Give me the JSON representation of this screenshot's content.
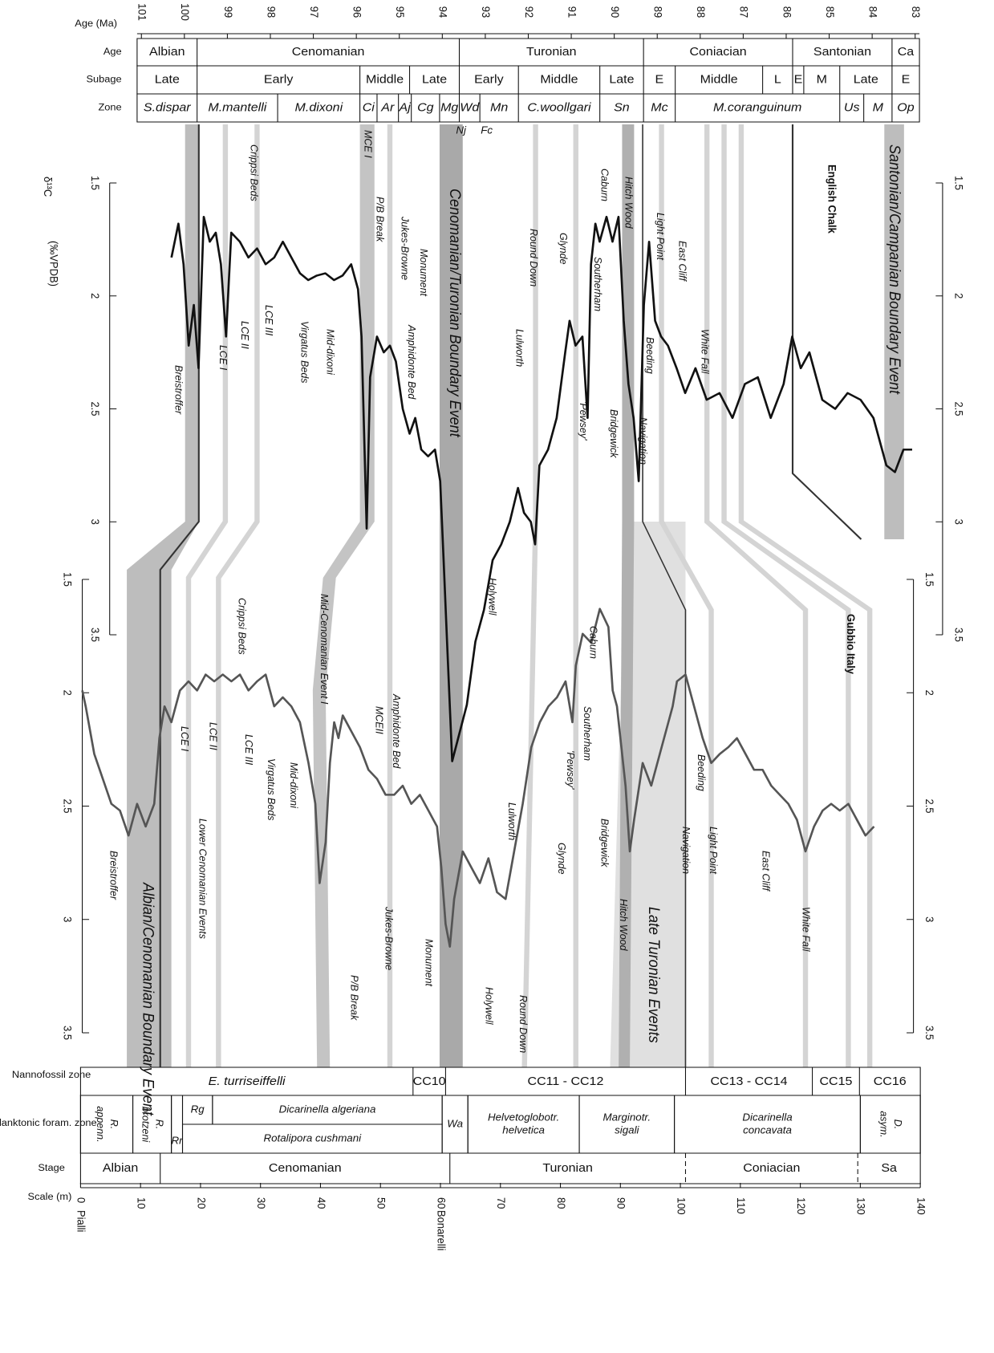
{
  "chart_data": [
    {
      "type": "line",
      "title": "English Chalk",
      "y_label": "δ¹³C",
      "y_unit": "(‰VPDB)",
      "x_label": "Age (Ma)",
      "color": "#111111",
      "x": [
        100.3,
        100.14,
        100.02,
        99.9,
        99.78,
        99.67,
        99.55,
        99.41,
        99.27,
        99.15,
        99.03,
        98.91,
        98.71,
        98.51,
        98.31,
        98.11,
        97.91,
        97.71,
        97.51,
        97.31,
        97.12,
        96.92,
        96.72,
        96.52,
        96.32,
        96.12,
        95.96,
        95.88,
        95.76,
        95.68,
        95.52,
        95.36,
        95.22,
        95.08,
        94.92,
        94.76,
        94.63,
        94.49,
        94.33,
        94.17,
        94.05,
        93.97,
        93.89,
        93.77,
        93.43,
        93.23,
        93.03,
        92.83,
        92.63,
        92.43,
        92.24,
        92.1,
        91.94,
        91.84,
        91.74,
        91.54,
        91.34,
        91.14,
        91.04,
        90.9,
        90.74,
        90.62,
        90.54,
        90.44,
        90.34,
        90.18,
        90.04,
        89.9,
        89.78,
        89.67,
        89.55,
        89.43,
        89.31,
        89.19,
        89.05,
        88.91,
        88.75,
        88.55,
        88.35,
        88.11,
        87.85,
        87.55,
        87.25,
        86.96,
        86.66,
        86.36,
        86.06,
        85.86,
        85.66,
        85.46,
        85.16,
        84.86,
        84.57,
        84.27,
        83.97,
        83.67,
        83.47,
        83.27,
        83.07
      ],
      "values": [
        1.83,
        1.68,
        1.86,
        2.22,
        2.04,
        2.32,
        1.65,
        1.76,
        1.72,
        1.86,
        2.18,
        1.72,
        1.76,
        1.83,
        1.79,
        1.86,
        1.83,
        1.76,
        1.83,
        1.9,
        1.93,
        1.91,
        1.9,
        1.93,
        1.91,
        1.86,
        1.97,
        2.18,
        3.03,
        2.36,
        2.18,
        2.25,
        2.22,
        2.29,
        2.5,
        2.61,
        2.54,
        2.68,
        2.71,
        2.68,
        2.82,
        3.17,
        3.53,
        4.06,
        3.81,
        3.53,
        3.39,
        3.17,
        3.1,
        3.0,
        2.85,
        2.96,
        3.0,
        3.1,
        2.75,
        2.68,
        2.54,
        2.25,
        2.11,
        2.22,
        2.18,
        2.54,
        1.86,
        1.68,
        1.76,
        1.65,
        1.76,
        1.65,
        2.11,
        2.39,
        2.54,
        2.82,
        2.04,
        1.76,
        2.11,
        2.18,
        2.22,
        2.32,
        2.43,
        2.32,
        2.46,
        2.43,
        2.54,
        2.39,
        2.36,
        2.54,
        2.39,
        2.18,
        2.32,
        2.25,
        2.46,
        2.5,
        2.43,
        2.46,
        2.54,
        2.75,
        2.78,
        2.68,
        2.68
      ],
      "xlim": [
        101.1,
        82.9
      ],
      "xticks": [
        101,
        100,
        99,
        98,
        97,
        96,
        95,
        94,
        93,
        92,
        91,
        90,
        89,
        88,
        87,
        86,
        85,
        84,
        83
      ],
      "ylim": [
        1.5,
        3.5
      ],
      "yticks": [
        1.5,
        2,
        2.5,
        3,
        3.5
      ]
    },
    {
      "type": "line",
      "title": "Gubbio Italy",
      "x_label": "Scale (m)",
      "color": "#555555",
      "x": [
        0.29,
        0.86,
        2.29,
        3.71,
        5.14,
        6.57,
        8.0,
        9.43,
        10.86,
        12.29,
        13.14,
        14.0,
        15.14,
        16.57,
        18.0,
        19.43,
        20.86,
        22.29,
        23.71,
        25.14,
        26.57,
        28.0,
        29.43,
        30.86,
        32.29,
        33.71,
        35.14,
        36.57,
        38.0,
        39.14,
        39.86,
        40.86,
        41.57,
        42.29,
        43.0,
        43.71,
        45.14,
        46.57,
        48.0,
        49.43,
        50.86,
        52.29,
        53.71,
        55.14,
        56.57,
        58.0,
        59.43,
        60.14,
        60.86,
        61.57,
        62.29,
        63.71,
        65.14,
        66.57,
        68.0,
        69.43,
        70.86,
        72.29,
        73.71,
        75.14,
        76.57,
        78.0,
        79.43,
        80.86,
        82.0,
        82.57,
        83.71,
        85.14,
        86.57,
        88.0,
        88.71,
        89.43,
        90.86,
        91.57,
        92.29,
        93.71,
        95.14,
        96.57,
        98.0,
        98.71,
        99.43,
        100.86,
        102.29,
        103.71,
        105.14,
        106.57,
        108.0,
        109.43,
        110.86,
        112.29,
        113.71,
        115.14,
        116.57,
        118.0,
        119.43,
        120.86,
        122.29,
        123.71,
        125.14,
        126.57,
        128.0,
        129.43,
        130.86,
        132.29
      ],
      "values": [
        1.99,
        2.06,
        2.27,
        2.38,
        2.49,
        2.52,
        2.63,
        2.49,
        2.59,
        2.49,
        2.2,
        2.06,
        2.13,
        1.99,
        1.95,
        1.99,
        1.92,
        1.95,
        1.92,
        1.95,
        1.92,
        1.99,
        1.95,
        1.92,
        2.06,
        2.02,
        2.06,
        2.13,
        2.31,
        2.49,
        2.84,
        2.66,
        2.31,
        2.13,
        2.2,
        2.1,
        2.17,
        2.24,
        2.34,
        2.38,
        2.45,
        2.45,
        2.41,
        2.49,
        2.45,
        2.52,
        2.59,
        2.77,
        3.02,
        3.12,
        2.91,
        2.7,
        2.77,
        2.84,
        2.73,
        2.88,
        2.91,
        2.7,
        2.49,
        2.24,
        2.13,
        2.06,
        2.02,
        1.95,
        2.13,
        1.88,
        1.74,
        1.78,
        1.63,
        1.71,
        1.99,
        2.06,
        2.41,
        2.7,
        2.56,
        2.31,
        2.41,
        2.27,
        2.13,
        2.06,
        1.95,
        1.92,
        2.06,
        2.2,
        2.31,
        2.27,
        2.24,
        2.2,
        2.27,
        2.34,
        2.34,
        2.41,
        2.45,
        2.49,
        2.56,
        2.7,
        2.59,
        2.52,
        2.49,
        2.52,
        2.49,
        2.56,
        2.63,
        2.59
      ],
      "xlim": [
        0,
        140
      ],
      "xticks": [
        0,
        10,
        20,
        30,
        40,
        50,
        60,
        70,
        80,
        90,
        100,
        110,
        120,
        130,
        140
      ],
      "ylim": [
        1.5,
        3.5
      ],
      "yticks": [
        1.5,
        2,
        2.5,
        3,
        3.5
      ]
    }
  ],
  "rows": {
    "age": {
      "label": "Age",
      "cells": [
        [
          "Albian"
        ],
        [
          "Cenomanian"
        ],
        [
          "Turonian"
        ],
        [
          "Coniacian"
        ],
        [
          "Santonian"
        ],
        [
          "Ca"
        ]
      ]
    },
    "subage": {
      "label": "Subage",
      "cells": [
        [
          "Late"
        ],
        [
          "Early"
        ],
        [
          "Middle"
        ],
        [
          "Late"
        ],
        [
          "Early"
        ],
        [
          "Middle"
        ],
        [
          "Late"
        ],
        [
          "E"
        ],
        [
          "Middle"
        ],
        [
          "L"
        ],
        [
          "E"
        ],
        [
          "M"
        ],
        [
          "Late"
        ],
        [
          "E"
        ]
      ]
    },
    "zone": {
      "label": "Zone",
      "cells": [
        [
          "S.dispar"
        ],
        [
          "M.mantelli"
        ],
        [
          "M.dixoni"
        ],
        [
          "Ci"
        ],
        [
          "Ar"
        ],
        [
          "Aj"
        ],
        [
          "Cg"
        ],
        [
          "Mg"
        ],
        [
          "Wd"
        ],
        [
          "Mn"
        ],
        [
          "C.woollgari"
        ],
        [
          "Sn"
        ],
        [
          "Mc"
        ],
        [
          "M.coranguinum"
        ],
        [
          "Us"
        ],
        [
          "M"
        ],
        [
          "Op"
        ]
      ]
    },
    "nanno": {
      "label": "Nannofossil zone",
      "cells": [
        [
          "E. turriseiffelli"
        ],
        [
          "CC10"
        ],
        [
          "CC11 - CC12"
        ],
        [
          "CC13 - CC14"
        ],
        [
          "CC15"
        ],
        [
          "CC16"
        ]
      ]
    },
    "foram": {
      "label": "Planktonic foram. zone",
      "cells": [
        [
          "R.",
          "appenn."
        ],
        [
          "R.",
          "brotzeni"
        ],
        [
          "Rr"
        ],
        [
          "Rg"
        ],
        [
          "Dicarinella algeriana"
        ],
        [
          "Rotalipora cushmani"
        ],
        [
          "Wa"
        ],
        [
          "Helvetoglobotr.",
          "helvetica"
        ],
        [
          "Marginotr.",
          "sigali"
        ],
        [
          "Dicarinella",
          "concavata"
        ],
        [
          "D.",
          "asym."
        ]
      ]
    },
    "stage": {
      "label": "Stage",
      "cells": [
        [
          "Albian"
        ],
        [
          "Cenomanian"
        ],
        [
          "Turonian"
        ],
        [
          "Coniacian"
        ],
        [
          "Sa"
        ]
      ]
    }
  },
  "notes": {
    "nj": "Nj",
    "fc": "Fc",
    "pialli": "Pialli",
    "bonarelli": "Bonarelli"
  },
  "events": {
    "chalk": [
      "Breistroffer",
      "LCE I",
      "LCE II",
      "LCE III",
      "Crippsi Beds",
      "Virgatus Beds",
      "Mid-dixoni",
      "MCE I",
      "P/B Break",
      "Jukes-Browne",
      "Amphidonte Bed",
      "Monument",
      "Cenomanian/Turonian Boundary Event",
      "Holywell",
      "Round Down",
      "Lulworth",
      "Glynde",
      "Southerham",
      "'Pewsey'",
      "Caburn",
      "Bridgewick",
      "Hitch Wood",
      "Navigation",
      "Light Point",
      "Beeding",
      "East Cliff",
      "White Fall",
      "Santonian/Campanian Boundary Event"
    ],
    "gubbio": [
      "Breistroffer",
      "Albian/Cenomanian Boundary Event",
      "Lower Cenomanian Events",
      "LCE I",
      "LCE II",
      "LCE III",
      "Crippsi Beds",
      "Virgatus Beds",
      "Mid-dixoni",
      "Mid-Cenomanian Event I",
      "MCEII",
      "Amphidonte Bed",
      "P/B Break",
      "Jukes-Browne",
      "Monument",
      "Holywell",
      "Lulworth",
      "Round Down",
      "Glynde",
      "'Pewsey'",
      "Southerham",
      "Caburn",
      "Bridgewick",
      "Hitch Wood",
      "Late Turonian Events",
      "Navigation",
      "Beeding",
      "Light Point",
      "East Cliff",
      "White Fall"
    ]
  }
}
